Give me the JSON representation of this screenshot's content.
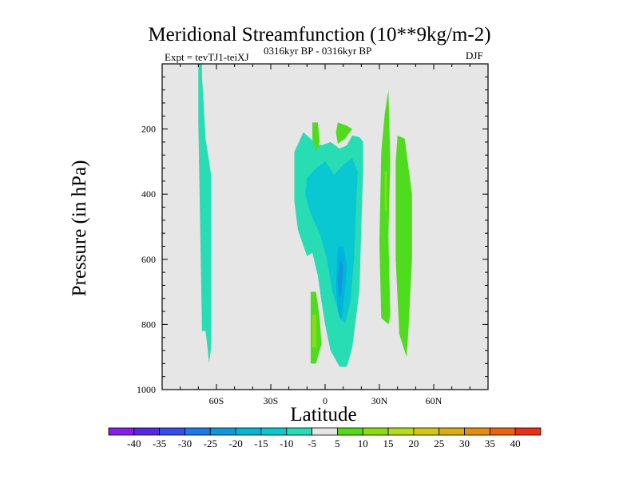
{
  "chart_data": {
    "type": "contour",
    "title": "Meridional Streamfunction (10**9kg/m-2)",
    "subtitle_left": "Expt = tevTJ1-teiXJ",
    "subtitle_center": "0316kyr BP - 0316kyr BP",
    "subtitle_right": "DJF",
    "xlabel": "Latitude",
    "ylabel": "Pressure (in hPa)",
    "xlim": [
      -90,
      90
    ],
    "ylim": [
      1000,
      0
    ],
    "x_ticks": [
      {
        "value": -60,
        "label": "60S"
      },
      {
        "value": -30,
        "label": "30S"
      },
      {
        "value": 0,
        "label": "0"
      },
      {
        "value": 30,
        "label": "30N"
      },
      {
        "value": 60,
        "label": "60N"
      }
    ],
    "y_ticks": [
      {
        "value": 200,
        "label": "200"
      },
      {
        "value": 400,
        "label": "400"
      },
      {
        "value": 600,
        "label": "600"
      },
      {
        "value": 800,
        "label": "800"
      },
      {
        "value": 1000,
        "label": "1000"
      }
    ],
    "background_color": "#e6e6e6",
    "colorbar": {
      "levels": [
        -40,
        -35,
        -30,
        -25,
        -20,
        -15,
        -10,
        -5,
        5,
        10,
        15,
        20,
        25,
        30,
        35,
        40
      ],
      "labels": [
        "-40",
        "-35",
        "-30",
        "-25",
        "-20",
        "-15",
        "-10",
        "-5",
        "5",
        "10",
        "15",
        "20",
        "25",
        "30",
        "35",
        "40"
      ],
      "colors": [
        "#8a1ee6",
        "#5a28dc",
        "#3250e6",
        "#1e78e6",
        "#1496dc",
        "#00b4dc",
        "#0ac8d2",
        "#28dcb4",
        "#e6e6e6",
        "#50dc1e",
        "#8cdc14",
        "#b4dc1e",
        "#d2c814",
        "#dcaa14",
        "#e68c14",
        "#e66414",
        "#e63214"
      ]
    },
    "regions": [
      {
        "name": "sh-polar-column",
        "band": "-10 to -5",
        "color": "#28dcb4",
        "points": [
          [
            -70,
            0
          ],
          [
            -68,
            0
          ],
          [
            -68,
            40
          ],
          [
            -66,
            230
          ],
          [
            -63,
            340
          ],
          [
            -63,
            680
          ],
          [
            -63,
            870
          ],
          [
            -64,
            920
          ],
          [
            -65,
            870
          ],
          [
            -66,
            820
          ],
          [
            -68,
            820
          ],
          [
            -69,
            500
          ],
          [
            -70,
            180
          ]
        ]
      },
      {
        "name": "tropical-cell-outer",
        "band": "-10 to -5",
        "color": "#28dcb4",
        "points": [
          [
            -17,
            270
          ],
          [
            -12,
            210
          ],
          [
            -6,
            240
          ],
          [
            -2,
            250
          ],
          [
            3,
            240
          ],
          [
            8,
            260
          ],
          [
            12,
            250
          ],
          [
            15,
            220
          ],
          [
            19,
            225
          ],
          [
            21,
            240
          ],
          [
            21,
            330
          ],
          [
            20,
            500
          ],
          [
            19,
            690
          ],
          [
            18,
            740
          ],
          [
            15,
            870
          ],
          [
            12,
            930
          ],
          [
            8,
            930
          ],
          [
            3,
            880
          ],
          [
            0,
            800
          ],
          [
            -2,
            730
          ],
          [
            -4,
            650
          ],
          [
            -7,
            580
          ],
          [
            -10,
            590
          ],
          [
            -15,
            510
          ],
          [
            -17,
            420
          ],
          [
            -17,
            350
          ]
        ]
      },
      {
        "name": "tropical-cell-core",
        "band": "-15 to -10",
        "color": "#0ac8d2",
        "points": [
          [
            -10,
            350
          ],
          [
            -5,
            320
          ],
          [
            0,
            300
          ],
          [
            5,
            340
          ],
          [
            10,
            310
          ],
          [
            15,
            290
          ],
          [
            18,
            330
          ],
          [
            17,
            460
          ],
          [
            16,
            600
          ],
          [
            14,
            730
          ],
          [
            11,
            800
          ],
          [
            8,
            770
          ],
          [
            4,
            700
          ],
          [
            1,
            600
          ],
          [
            -3,
            520
          ],
          [
            -8,
            460
          ],
          [
            -11,
            400
          ]
        ]
      },
      {
        "name": "tropical-cell-center",
        "band": "-20 to -15",
        "color": "#00b4dc",
        "points": [
          [
            7,
            560
          ],
          [
            10,
            560
          ],
          [
            12,
            620
          ],
          [
            11,
            700
          ],
          [
            9,
            790
          ],
          [
            7,
            760
          ],
          [
            6,
            680
          ]
        ]
      },
      {
        "name": "tropical-cell-deep",
        "band": "-25 to -20",
        "color": "#1496dc",
        "points": [
          [
            8,
            600
          ],
          [
            10,
            620
          ],
          [
            9,
            700
          ],
          [
            8,
            720
          ],
          [
            7,
            670
          ]
        ]
      },
      {
        "name": "nh-upper-lobe-a",
        "band": "5 to 10",
        "color": "#50dc1e",
        "points": [
          [
            -7,
            180
          ],
          [
            -4,
            180
          ],
          [
            -3,
            240
          ],
          [
            -5,
            270
          ],
          [
            -7,
            230
          ]
        ]
      },
      {
        "name": "nh-upper-lobe-b",
        "band": "5 to 10",
        "color": "#50dc1e",
        "points": [
          [
            7,
            180
          ],
          [
            12,
            190
          ],
          [
            15,
            200
          ],
          [
            11,
            230
          ],
          [
            7,
            245
          ],
          [
            6,
            210
          ]
        ]
      },
      {
        "name": "sh-lower-lobe",
        "band": "5 to 10",
        "color": "#50dc1e",
        "points": [
          [
            -8,
            700
          ],
          [
            -5,
            700
          ],
          [
            -3,
            780
          ],
          [
            -2,
            860
          ],
          [
            -5,
            920
          ],
          [
            -8,
            920
          ],
          [
            -8,
            820
          ]
        ]
      },
      {
        "name": "sh-lower-lobe-core",
        "band": "10 to 15",
        "color": "#8cdc14",
        "points": [
          [
            -7,
            770
          ],
          [
            -5,
            770
          ],
          [
            -5,
            870
          ],
          [
            -7,
            870
          ]
        ]
      },
      {
        "name": "nh-cell-left",
        "band": "5 to 10",
        "color": "#50dc1e",
        "points": [
          [
            35,
            80
          ],
          [
            36,
            300
          ],
          [
            35,
            530
          ],
          [
            36,
            770
          ],
          [
            35,
            800
          ],
          [
            31,
            780
          ],
          [
            30,
            550
          ],
          [
            31,
            270
          ],
          [
            33,
            150
          ]
        ]
      },
      {
        "name": "nh-cell-left-core",
        "band": "10 to 15",
        "color": "#8cdc14",
        "points": [
          [
            33,
            330
          ],
          [
            34,
            330
          ],
          [
            34,
            450
          ],
          [
            33,
            450
          ]
        ]
      },
      {
        "name": "nh-cell-right",
        "band": "5 to 10",
        "color": "#50dc1e",
        "points": [
          [
            40,
            220
          ],
          [
            44,
            230
          ],
          [
            48,
            400
          ],
          [
            48,
            600
          ],
          [
            46,
            820
          ],
          [
            45,
            900
          ],
          [
            41,
            830
          ],
          [
            39,
            600
          ],
          [
            39,
            300
          ]
        ]
      }
    ]
  }
}
